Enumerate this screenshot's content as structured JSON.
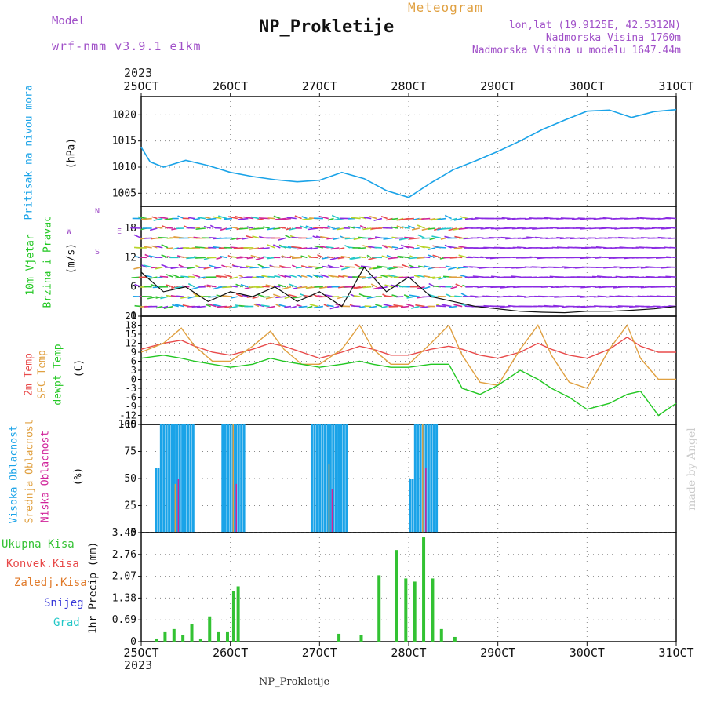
{
  "header": {
    "model_label": "Model",
    "model_name": "wrf-nmm_v3.9.1 e1km",
    "title": "NP_Prokletije",
    "subtitle": "Meteogram",
    "lonlat": "lon,lat (19.9125E, 42.5312N)",
    "elevation": "Nadmorska Visina 1760m",
    "model_elevation": "Nadmorska Visina u modelu 1647.44m",
    "footer": "NP_Prokletije",
    "credit": "made by Angel",
    "year_top": "2023",
    "year_bottom": "2023"
  },
  "colors": {
    "pressure": "#1aa3e8",
    "t2m": "#e84a4a",
    "sfc": "#e0a040",
    "dewpoint": "#22c722",
    "high_cloud": "#1aa3e8",
    "mid_cloud": "#e0a040",
    "low_cloud": "#d0239a",
    "precip_total": "#33c233",
    "precip_conv": "#e84a4a",
    "precip_frz": "#e07a2a",
    "snow": "#3535d8",
    "graupel": "#22c7c7",
    "model": "#a050c8"
  },
  "chart_data": [
    {
      "type": "line",
      "name": "pressure",
      "ylabel_lines": [
        "Pritisak na nivou mora",
        "(hPa)"
      ],
      "x_ticks": [
        "25OCT",
        "26OCT",
        "27OCT",
        "28OCT",
        "29OCT",
        "30OCT",
        "31OCT"
      ],
      "ylim": [
        1002.5,
        1023.5
      ],
      "yticks": [
        1005,
        1010,
        1015,
        1020
      ],
      "x": [
        0,
        0.1,
        0.25,
        0.5,
        0.75,
        1.0,
        1.25,
        1.5,
        1.75,
        2.0,
        2.25,
        2.5,
        2.75,
        3.0,
        3.25,
        3.5,
        3.75,
        4.0,
        4.25,
        4.5,
        4.75,
        5.0,
        5.25,
        5.5,
        5.75,
        6.0
      ],
      "values": [
        1013.8,
        1011,
        1010,
        1011.3,
        1010.3,
        1009,
        1008.2,
        1007.6,
        1007.2,
        1007.5,
        1009,
        1007.8,
        1005.5,
        1004.2,
        1007,
        1009.5,
        1011.2,
        1013,
        1015,
        1017.2,
        1019,
        1020.7,
        1020.9,
        1019.5,
        1020.6,
        1021
      ]
    },
    {
      "type": "line",
      "name": "wind",
      "ylabel_lines": [
        "10m Vjetar",
        "Brzina i Pravac",
        "(m/s)"
      ],
      "ylim": [
        0,
        22.5
      ],
      "yticks": [
        0,
        6,
        12,
        18
      ],
      "compass": [
        "N",
        "W",
        "E",
        "S"
      ],
      "x": [
        0,
        0.25,
        0.5,
        0.75,
        1.0,
        1.25,
        1.5,
        1.75,
        2.0,
        2.25,
        2.5,
        2.75,
        3.0,
        3.25,
        3.5,
        3.75,
        4.0,
        4.25,
        4.5,
        4.75,
        5.0,
        5.25,
        5.5,
        5.75,
        6.0
      ],
      "values": [
        9,
        5,
        6,
        3,
        5,
        4,
        6,
        3,
        5,
        2,
        10,
        5,
        8,
        4,
        3,
        2,
        1.5,
        1,
        0.8,
        0.7,
        1,
        1,
        1.2,
        1.5,
        2
      ]
    },
    {
      "type": "line",
      "name": "temperature",
      "ylabel_lines": [
        "2m Temp",
        "SFC Temp",
        "dewpt Temp",
        "(C)"
      ],
      "ylim": [
        -15,
        21
      ],
      "yticks": [
        -15,
        -12,
        -9,
        -6,
        -3,
        0,
        3,
        6,
        9,
        12,
        15,
        18,
        21
      ],
      "x": [
        0,
        0.25,
        0.45,
        0.6,
        0.8,
        1.0,
        1.25,
        1.45,
        1.6,
        1.8,
        2.0,
        2.25,
        2.45,
        2.6,
        2.8,
        3.0,
        3.25,
        3.45,
        3.6,
        3.8,
        4.0,
        4.25,
        4.45,
        4.6,
        4.8,
        5.0,
        5.25,
        5.45,
        5.6,
        5.8,
        6.0
      ],
      "series": [
        {
          "name": "2m Temp",
          "values": [
            10,
            12,
            13,
            11,
            9,
            8,
            10,
            12,
            11,
            9,
            7,
            9,
            11,
            10,
            8,
            8,
            10,
            11,
            10,
            8,
            7,
            9,
            12,
            10,
            8,
            7,
            10,
            14,
            11,
            9,
            9
          ]
        },
        {
          "name": "SFC Temp",
          "values": [
            9,
            12,
            17,
            11,
            6,
            6,
            11,
            16,
            10,
            5,
            5,
            10,
            18,
            10,
            5,
            5,
            12,
            18,
            8,
            -1,
            -2,
            10,
            18,
            8,
            -1,
            -3,
            10,
            18,
            7,
            0,
            0
          ]
        },
        {
          "name": "dewpt Temp",
          "values": [
            7,
            8,
            7,
            6,
            5,
            4,
            5,
            7,
            6,
            5,
            4,
            5,
            6,
            5,
            4,
            4,
            5,
            5,
            -3,
            -5,
            -2,
            3,
            0,
            -3,
            -6,
            -10,
            -8,
            -5,
            -4,
            -12,
            -8
          ]
        }
      ]
    },
    {
      "type": "bar",
      "name": "cloud",
      "ylabel_lines": [
        "Visoka Oblacnost",
        "Srednja Oblacnost",
        "Niska Oblacnost",
        "(%)"
      ],
      "ylim": [
        0,
        100
      ],
      "yticks": [
        0,
        25,
        50,
        75,
        100
      ],
      "high_segments": [
        [
          0.15,
          0.6,
          100
        ],
        [
          0.9,
          1.15,
          100
        ],
        [
          1.9,
          2.3,
          100
        ],
        [
          3.0,
          3.3,
          100
        ]
      ],
      "series": [
        {
          "name": "Visoka Oblacnost",
          "values": [
            60,
            100,
            100,
            50
          ]
        },
        {
          "name": "Srednja Oblacnost",
          "values": [
            45,
            100,
            63,
            100
          ]
        },
        {
          "name": "Niska Oblacnost",
          "values": [
            50,
            45,
            40,
            60
          ]
        }
      ]
    },
    {
      "type": "bar",
      "name": "precip",
      "ylabel_lines": [
        "1hr Precip (mm)"
      ],
      "legend": [
        "Ukupna Kisa",
        "Konvek.Kisa",
        "Zaledj.Kisa",
        "Snijeg",
        "Grad"
      ],
      "ylim": [
        0,
        3.45
      ],
      "yticks": [
        0,
        0.69,
        1.38,
        2.07,
        2.76,
        3.45
      ],
      "x": [
        0.15,
        0.25,
        0.35,
        0.45,
        0.55,
        0.65,
        0.75,
        0.85,
        0.95,
        1.02,
        1.07,
        2.2,
        2.45,
        2.65,
        2.85,
        2.95,
        3.05,
        3.15,
        3.25,
        3.35,
        3.5
      ],
      "values": [
        0.1,
        0.3,
        0.4,
        0.2,
        0.55,
        0.1,
        0.8,
        0.3,
        0.3,
        1.6,
        1.75,
        0.25,
        0.2,
        2.1,
        2.9,
        2.0,
        1.9,
        3.3,
        2.0,
        0.4,
        0.15
      ]
    }
  ]
}
